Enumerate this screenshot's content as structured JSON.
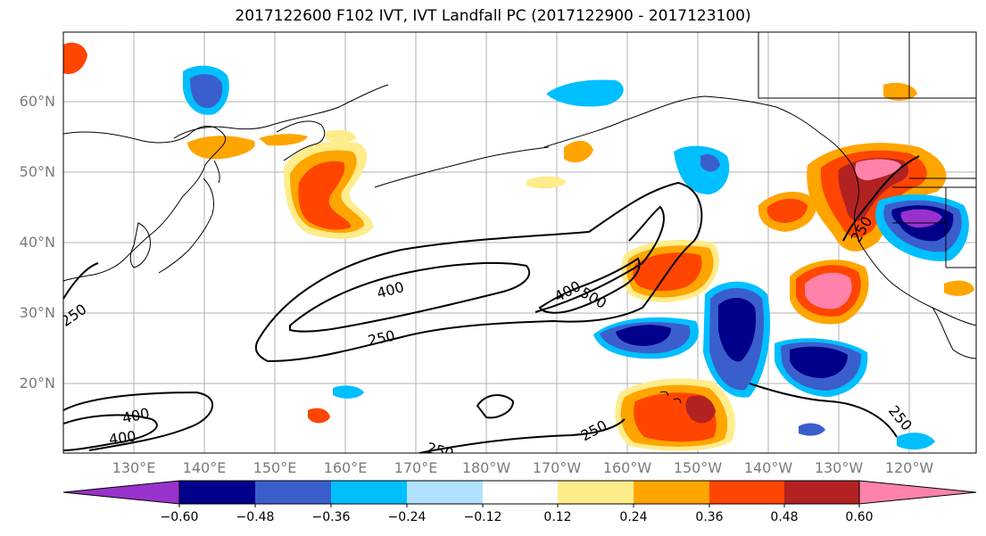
{
  "title": "2017122600 F102 IVT, IVT Landfall PC (2017122900 - 2017123100)",
  "lat_labels": [
    "60°N",
    "50°N",
    "40°N",
    "30°N",
    "20°N"
  ],
  "lon_labels": [
    "130°E",
    "140°E",
    "150°E",
    "160°E",
    "170°E",
    "180°W",
    "170°W",
    "160°W",
    "150°W",
    "140°W",
    "130°W",
    "120°W"
  ],
  "contour_labels": [
    "400",
    "250",
    "400",
    "500",
    "250",
    "400",
    "400",
    "250",
    "250",
    "250",
    "250",
    "250"
  ],
  "colorbar": {
    "ticks": [
      "−0.60",
      "−0.48",
      "−0.36",
      "−0.24",
      "−0.12",
      "0.12",
      "0.24",
      "0.36",
      "0.48",
      "0.60"
    ],
    "colors": [
      "#9932cc",
      "#00008b",
      "#3a5fcd",
      "#00bfff",
      "#b0e2ff",
      "#ffffff",
      "#ffec8b",
      "#ffa500",
      "#ff4500",
      "#b22222",
      "#ff82ab"
    ]
  },
  "colors": {
    "neg_strong": "#00008b",
    "neg_mid": "#3a5fcd",
    "neg_light": "#00bfff",
    "neg_pale": "#b0e2ff",
    "neg_extreme": "#9932cc",
    "pos_pale": "#ffec8b",
    "pos_light": "#ffa500",
    "pos_mid": "#ff4500",
    "pos_strong": "#b22222",
    "pos_extreme": "#ff82ab"
  }
}
